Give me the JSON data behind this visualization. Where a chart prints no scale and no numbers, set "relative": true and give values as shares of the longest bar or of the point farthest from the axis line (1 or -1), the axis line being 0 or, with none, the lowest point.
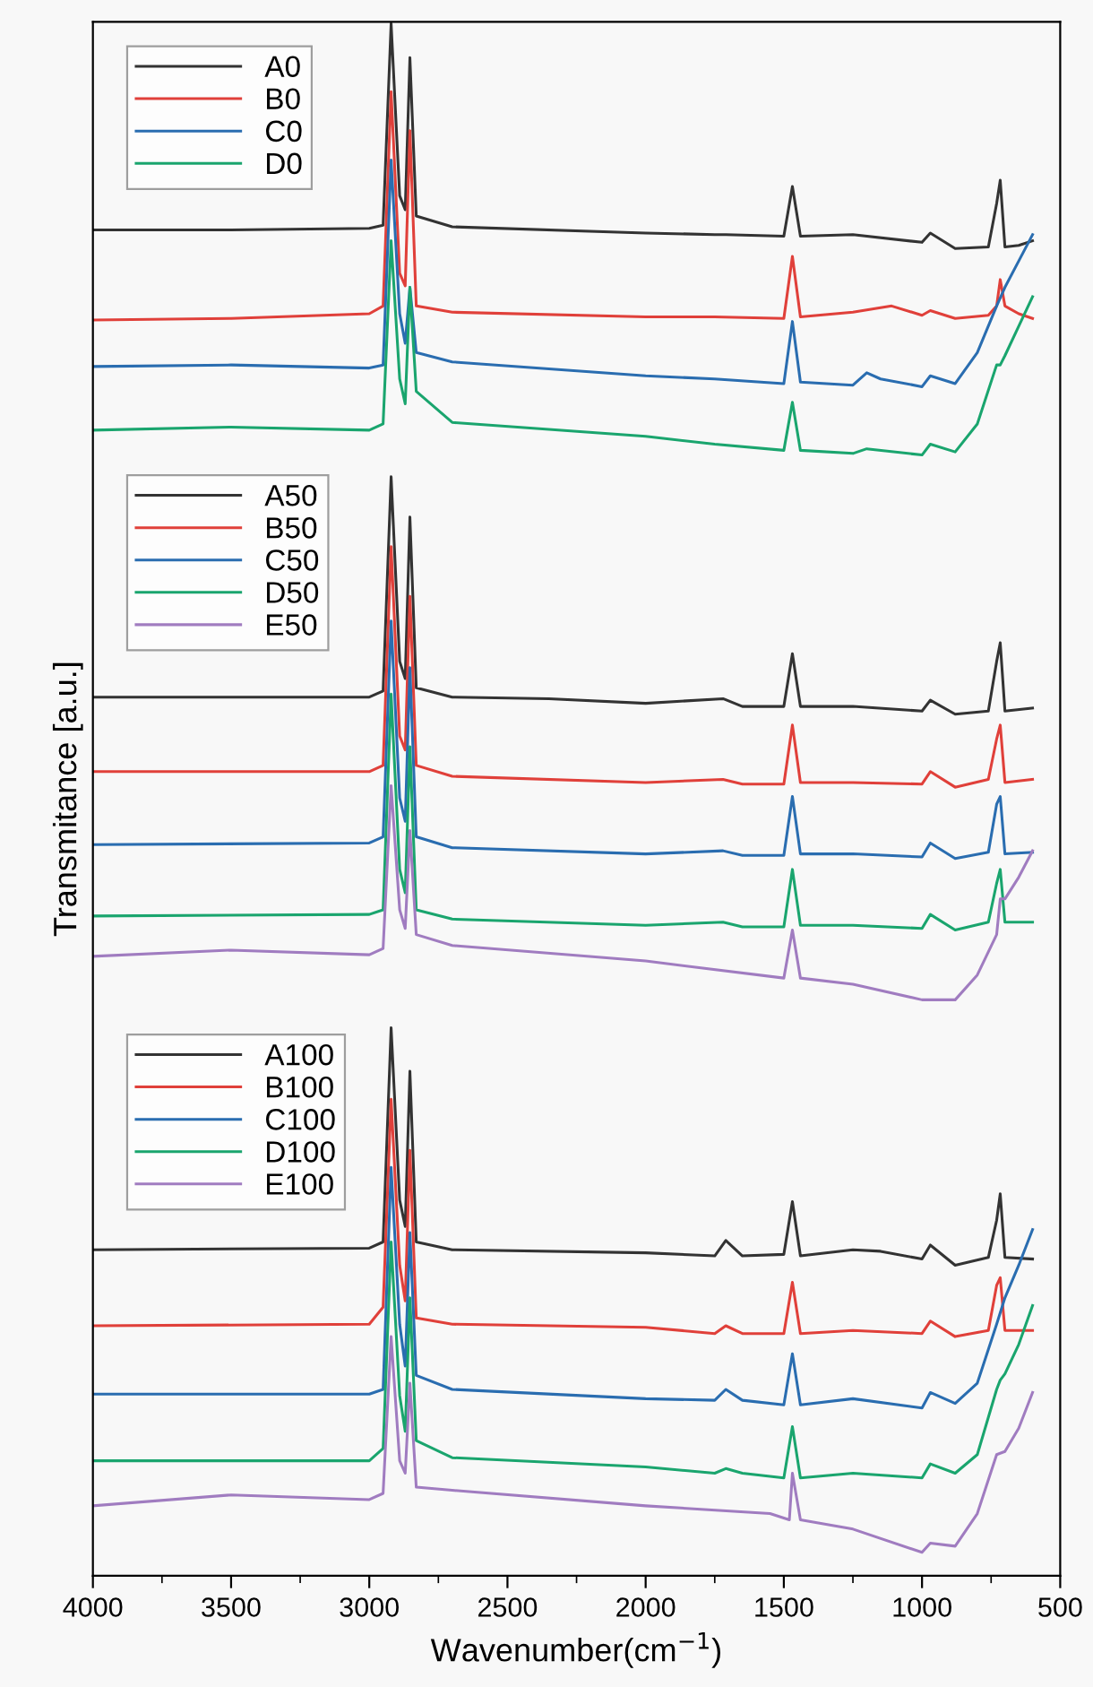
{
  "chart_data": {
    "type": "line",
    "relative": true,
    "xlabel": "Wavenumber(cm$^{−1}$)",
    "ylabel": "Transmitance [a.u.]",
    "xlim": [
      4000,
      500
    ],
    "xticks": [
      4000,
      3500,
      3000,
      2500,
      2000,
      1500,
      1000,
      500
    ],
    "tick_labels": "x",
    "legend": "top left",
    "grid": false,
    "marker": "none",
    "line_style": "solid",
    "series": [
      {
        "name": "A0",
        "color": "#333333",
        "x": [
          4000,
          3500,
          3000,
          2950,
          2921,
          2890,
          2870,
          2853,
          2830,
          2700,
          2000,
          1750,
          1710,
          1500,
          1469,
          1440,
          1250,
          1000,
          970,
          880,
          760,
          730,
          717,
          700,
          650,
          600
        ],
        "values": [
          0.867,
          0.867,
          0.868,
          0.87,
          1.0,
          0.889,
          0.88,
          0.978,
          0.876,
          0.869,
          0.865,
          0.864,
          0.864,
          0.863,
          0.895,
          0.863,
          0.864,
          0.859,
          0.865,
          0.855,
          0.856,
          0.884,
          0.899,
          0.856,
          0.857,
          0.86
        ]
      },
      {
        "name": "B0",
        "color": "#e0403a",
        "x": [
          4000,
          3500,
          3000,
          2950,
          2921,
          2890,
          2870,
          2853,
          2830,
          2700,
          2000,
          1750,
          1500,
          1469,
          1440,
          1250,
          1110,
          1000,
          970,
          880,
          760,
          730,
          717,
          700,
          650,
          600
        ],
        "values": [
          0.809,
          0.81,
          0.813,
          0.818,
          0.956,
          0.839,
          0.831,
          0.931,
          0.818,
          0.814,
          0.811,
          0.811,
          0.81,
          0.85,
          0.811,
          0.814,
          0.818,
          0.812,
          0.815,
          0.81,
          0.812,
          0.818,
          0.835,
          0.818,
          0.813,
          0.81
        ]
      },
      {
        "name": "C0",
        "color": "#2a6db0",
        "x": [
          4000,
          3500,
          3000,
          2950,
          2921,
          2890,
          2870,
          2853,
          2830,
          2700,
          2000,
          1750,
          1500,
          1469,
          1440,
          1250,
          1200,
          1150,
          1000,
          970,
          880,
          800,
          730,
          700,
          650,
          600
        ],
        "values": [
          0.779,
          0.78,
          0.778,
          0.78,
          0.912,
          0.813,
          0.794,
          0.83,
          0.788,
          0.782,
          0.773,
          0.771,
          0.768,
          0.808,
          0.769,
          0.767,
          0.775,
          0.771,
          0.766,
          0.773,
          0.768,
          0.788,
          0.818,
          0.83,
          0.847,
          0.864
        ]
      },
      {
        "name": "D0",
        "color": "#1aa56e",
        "x": [
          4000,
          3500,
          3000,
          2950,
          2921,
          2890,
          2870,
          2853,
          2830,
          2700,
          2000,
          1750,
          1500,
          1469,
          1440,
          1250,
          1200,
          1000,
          970,
          880,
          800,
          730,
          717,
          700,
          650,
          600
        ],
        "values": [
          0.738,
          0.74,
          0.738,
          0.742,
          0.86,
          0.771,
          0.755,
          0.83,
          0.763,
          0.743,
          0.734,
          0.729,
          0.725,
          0.756,
          0.725,
          0.723,
          0.726,
          0.722,
          0.729,
          0.724,
          0.742,
          0.78,
          0.78,
          0.786,
          0.805,
          0.824
        ]
      },
      {
        "name": "A50",
        "color": "#333333",
        "x": [
          4000,
          3000,
          2950,
          2921,
          2890,
          2870,
          2853,
          2830,
          2700,
          2350,
          2000,
          1720,
          1650,
          1500,
          1469,
          1440,
          1250,
          1000,
          970,
          880,
          760,
          730,
          717,
          700,
          600
        ],
        "values": [
          0.566,
          0.566,
          0.57,
          0.708,
          0.589,
          0.578,
          0.682,
          0.572,
          0.566,
          0.565,
          0.562,
          0.565,
          0.56,
          0.56,
          0.594,
          0.56,
          0.56,
          0.557,
          0.564,
          0.555,
          0.557,
          0.589,
          0.601,
          0.557,
          0.559
        ]
      },
      {
        "name": "B50",
        "color": "#e0403a",
        "x": [
          4000,
          3000,
          2950,
          2921,
          2890,
          2870,
          2853,
          2830,
          2700,
          2000,
          1720,
          1650,
          1500,
          1469,
          1440,
          1250,
          1000,
          970,
          880,
          760,
          730,
          717,
          700,
          600
        ],
        "values": [
          0.518,
          0.518,
          0.522,
          0.663,
          0.541,
          0.532,
          0.631,
          0.522,
          0.515,
          0.511,
          0.513,
          0.51,
          0.51,
          0.548,
          0.511,
          0.511,
          0.51,
          0.518,
          0.508,
          0.513,
          0.539,
          0.548,
          0.511,
          0.513
        ]
      },
      {
        "name": "C50",
        "color": "#2a6db0",
        "x": [
          4000,
          3000,
          2950,
          2921,
          2890,
          2870,
          2853,
          2830,
          2700,
          2000,
          1720,
          1650,
          1500,
          1469,
          1440,
          1250,
          1000,
          970,
          880,
          760,
          730,
          717,
          700,
          600
        ],
        "values": [
          0.471,
          0.472,
          0.476,
          0.615,
          0.501,
          0.486,
          0.585,
          0.476,
          0.469,
          0.465,
          0.467,
          0.464,
          0.464,
          0.502,
          0.465,
          0.465,
          0.463,
          0.472,
          0.462,
          0.466,
          0.497,
          0.502,
          0.465,
          0.466
        ]
      },
      {
        "name": "D50",
        "color": "#1aa56e",
        "x": [
          4000,
          3000,
          2950,
          2921,
          2890,
          2870,
          2853,
          2830,
          2700,
          2000,
          1720,
          1650,
          1500,
          1469,
          1440,
          1250,
          1000,
          970,
          880,
          760,
          730,
          717,
          700,
          600
        ],
        "values": [
          0.425,
          0.426,
          0.429,
          0.568,
          0.455,
          0.44,
          0.534,
          0.429,
          0.423,
          0.419,
          0.421,
          0.418,
          0.418,
          0.455,
          0.419,
          0.419,
          0.417,
          0.426,
          0.416,
          0.421,
          0.446,
          0.455,
          0.421,
          0.421
        ]
      },
      {
        "name": "E50",
        "color": "#a07cc0",
        "x": [
          4000,
          3500,
          3000,
          2950,
          2921,
          2890,
          2870,
          2853,
          2830,
          2700,
          2000,
          1500,
          1469,
          1440,
          1250,
          1000,
          880,
          800,
          730,
          717,
          700,
          650,
          600
        ],
        "values": [
          0.399,
          0.403,
          0.4,
          0.404,
          0.509,
          0.429,
          0.417,
          0.48,
          0.413,
          0.406,
          0.396,
          0.385,
          0.416,
          0.385,
          0.381,
          0.371,
          0.371,
          0.387,
          0.413,
          0.436,
          0.436,
          0.45,
          0.467
        ]
      },
      {
        "name": "A100",
        "color": "#333333",
        "x": [
          4000,
          3000,
          2950,
          2921,
          2890,
          2870,
          2853,
          2830,
          2700,
          2000,
          1750,
          1710,
          1650,
          1500,
          1469,
          1440,
          1250,
          1150,
          1000,
          970,
          880,
          760,
          730,
          717,
          700,
          600
        ],
        "values": [
          0.21,
          0.211,
          0.215,
          0.353,
          0.242,
          0.225,
          0.325,
          0.215,
          0.21,
          0.208,
          0.206,
          0.216,
          0.206,
          0.207,
          0.241,
          0.206,
          0.21,
          0.209,
          0.204,
          0.213,
          0.2,
          0.205,
          0.229,
          0.246,
          0.205,
          0.204
        ]
      },
      {
        "name": "B100",
        "color": "#e0403a",
        "x": [
          4000,
          3000,
          2950,
          2921,
          2890,
          2870,
          2853,
          2830,
          2700,
          2000,
          1750,
          1710,
          1650,
          1500,
          1469,
          1440,
          1250,
          1000,
          970,
          880,
          760,
          730,
          717,
          700,
          600
        ],
        "values": [
          0.161,
          0.162,
          0.173,
          0.307,
          0.2,
          0.177,
          0.274,
          0.166,
          0.162,
          0.16,
          0.156,
          0.161,
          0.156,
          0.156,
          0.189,
          0.156,
          0.158,
          0.156,
          0.164,
          0.154,
          0.158,
          0.187,
          0.192,
          0.158,
          0.158
        ]
      },
      {
        "name": "C100",
        "color": "#2a6db0",
        "x": [
          4000,
          3000,
          2950,
          2921,
          2890,
          2870,
          2853,
          2830,
          2700,
          2000,
          1750,
          1710,
          1650,
          1500,
          1469,
          1440,
          1250,
          1000,
          970,
          880,
          800,
          730,
          700,
          650,
          600
        ],
        "values": [
          0.117,
          0.117,
          0.12,
          0.263,
          0.162,
          0.135,
          0.221,
          0.129,
          0.12,
          0.114,
          0.113,
          0.12,
          0.113,
          0.11,
          0.143,
          0.11,
          0.114,
          0.108,
          0.118,
          0.111,
          0.124,
          0.162,
          0.179,
          0.2,
          0.223
        ]
      },
      {
        "name": "D100",
        "color": "#1aa56e",
        "x": [
          4000,
          3000,
          2950,
          2921,
          2890,
          2870,
          2853,
          2830,
          2700,
          2000,
          1750,
          1710,
          1650,
          1500,
          1469,
          1440,
          1250,
          1000,
          970,
          880,
          800,
          730,
          717,
          700,
          650,
          600
        ],
        "values": [
          0.074,
          0.074,
          0.082,
          0.215,
          0.116,
          0.093,
          0.179,
          0.087,
          0.076,
          0.07,
          0.066,
          0.069,
          0.066,
          0.063,
          0.096,
          0.063,
          0.066,
          0.063,
          0.072,
          0.066,
          0.078,
          0.12,
          0.126,
          0.13,
          0.149,
          0.174
        ]
      },
      {
        "name": "E100",
        "color": "#a07cc0",
        "x": [
          4000,
          3500,
          3000,
          2950,
          2921,
          2890,
          2870,
          2853,
          2830,
          2700,
          2000,
          1550,
          1480,
          1469,
          1440,
          1250,
          1000,
          970,
          880,
          800,
          730,
          700,
          650,
          600
        ],
        "values": [
          0.045,
          0.052,
          0.049,
          0.053,
          0.154,
          0.074,
          0.066,
          0.124,
          0.057,
          0.055,
          0.045,
          0.04,
          0.036,
          0.066,
          0.036,
          0.03,
          0.015,
          0.021,
          0.019,
          0.04,
          0.078,
          0.08,
          0.095,
          0.118
        ]
      }
    ]
  }
}
